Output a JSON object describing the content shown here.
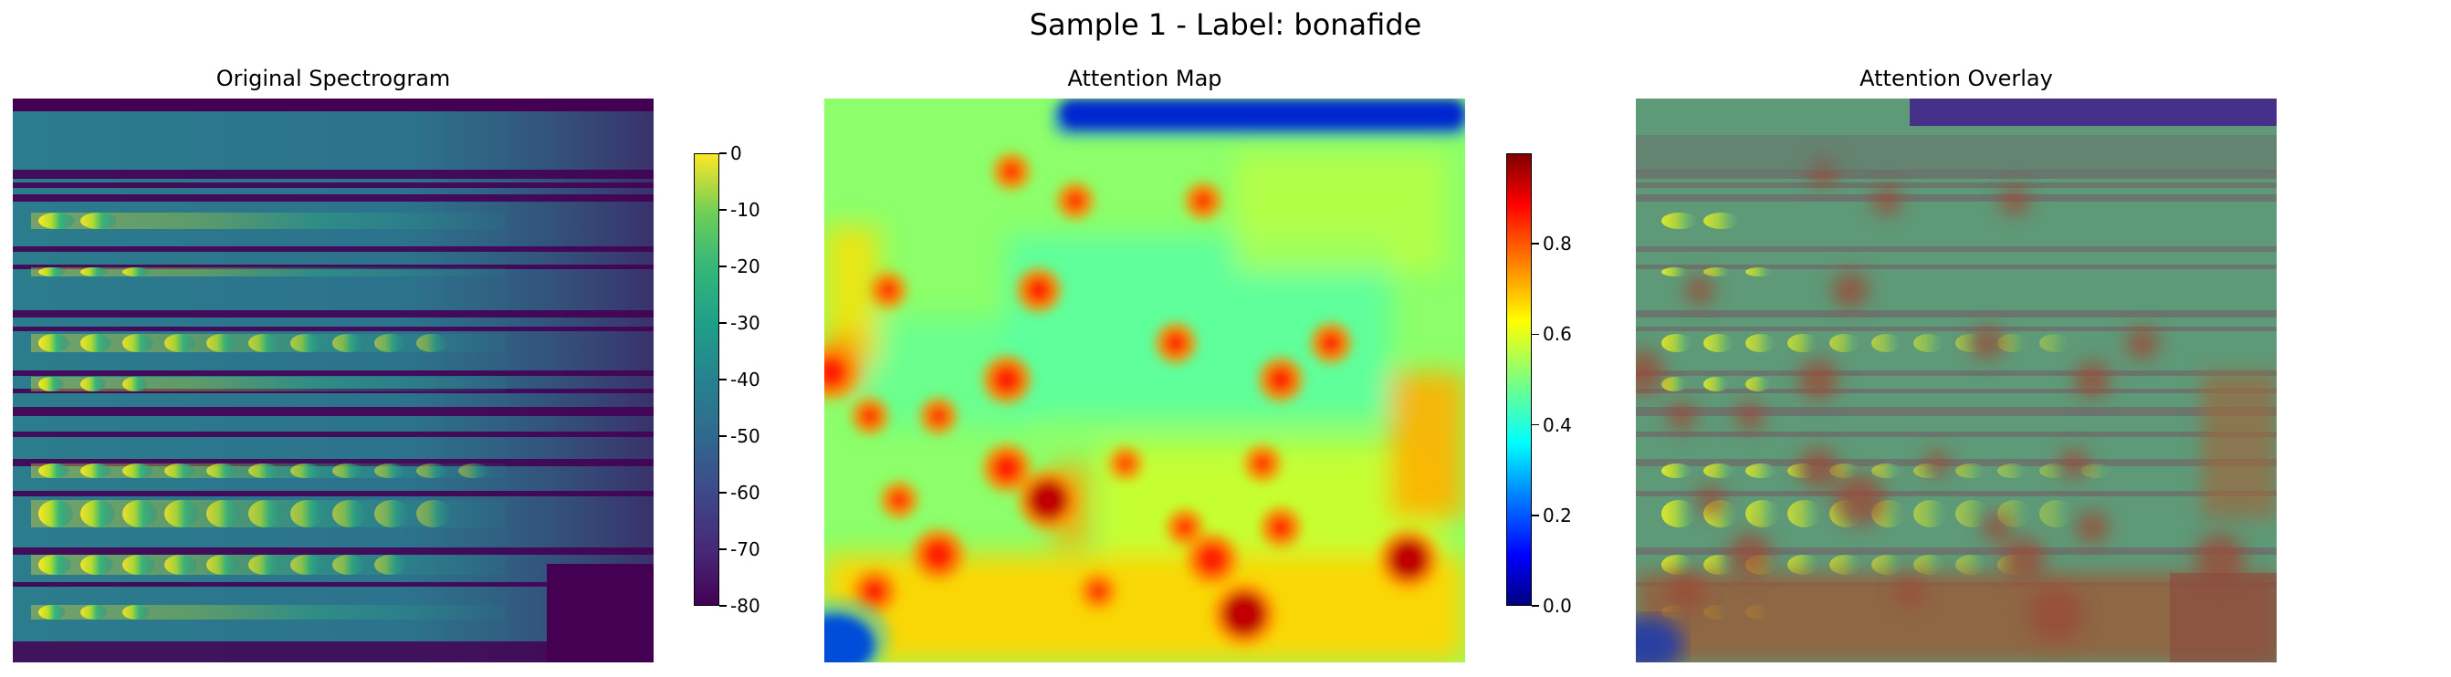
{
  "figure": {
    "suptitle": "Sample 1 - Label: bonafide"
  },
  "chart_data": [
    {
      "type": "heatmap",
      "title": "Original Spectrogram",
      "xlabel": "",
      "ylabel": "",
      "axis": "off",
      "colormap": "viridis",
      "colorbar": {
        "range": [
          -80,
          0
        ],
        "ticks": [
          "0",
          "-10",
          "-20",
          "-30",
          "-40",
          "-50",
          "-60",
          "-70",
          "-80"
        ]
      }
    },
    {
      "type": "heatmap",
      "title": "Attention Map",
      "xlabel": "",
      "ylabel": "",
      "axis": "off",
      "colormap": "jet",
      "colorbar": {
        "range": [
          0.0,
          1.0
        ],
        "ticks": [
          "0.8",
          "0.6",
          "0.4",
          "0.2",
          "0.0"
        ]
      }
    },
    {
      "type": "heatmap",
      "title": "Attention Overlay",
      "xlabel": "",
      "ylabel": "",
      "axis": "off",
      "colormap": "viridis + jet overlay"
    }
  ]
}
